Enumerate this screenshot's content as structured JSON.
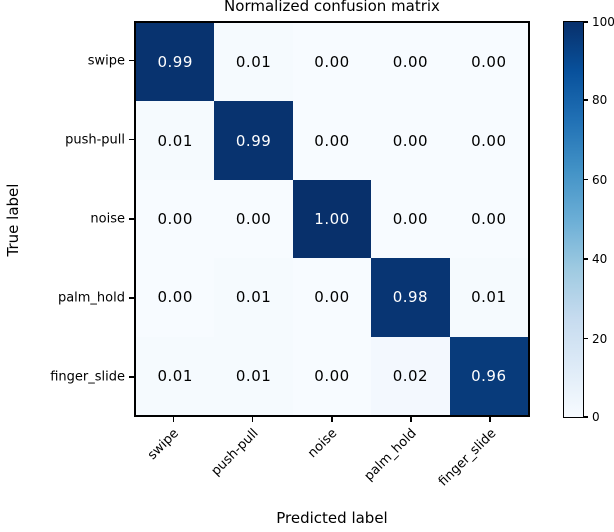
{
  "chart_data": {
    "type": "heatmap",
    "title": "Normalized confusion matrix",
    "xlabel": "Predicted label",
    "ylabel": "True label",
    "x_tick_labels": [
      "swipe",
      "push-pull",
      "noise",
      "palm_hold",
      "finger_slide"
    ],
    "y_tick_labels": [
      "swipe",
      "push-pull",
      "noise",
      "palm_hold",
      "finger_slide"
    ],
    "matrix": [
      [
        0.99,
        0.01,
        0.0,
        0.0,
        0.0
      ],
      [
        0.01,
        0.99,
        0.0,
        0.0,
        0.0
      ],
      [
        0.0,
        0.0,
        1.0,
        0.0,
        0.0
      ],
      [
        0.0,
        0.01,
        0.0,
        0.98,
        0.01
      ],
      [
        0.01,
        0.01,
        0.0,
        0.02,
        0.96
      ]
    ],
    "value_decimals": 2,
    "text_color_threshold": 0.5,
    "cell_text_color_light": "#ffffff",
    "cell_text_color_dark": "#000000",
    "colormap_name": "Blues",
    "colormap_stops": [
      "#f7fbff",
      "#deebf7",
      "#c6dbef",
      "#9ecae1",
      "#6baed6",
      "#4292c6",
      "#2171b5",
      "#08519c",
      "#08306b"
    ],
    "colorbar": {
      "min": 0,
      "max": 100,
      "ticks": [
        0,
        20,
        40,
        60,
        80,
        100
      ],
      "position": "right"
    },
    "grid": false,
    "axis_color": "#000000",
    "background_color": "#ffffff"
  }
}
